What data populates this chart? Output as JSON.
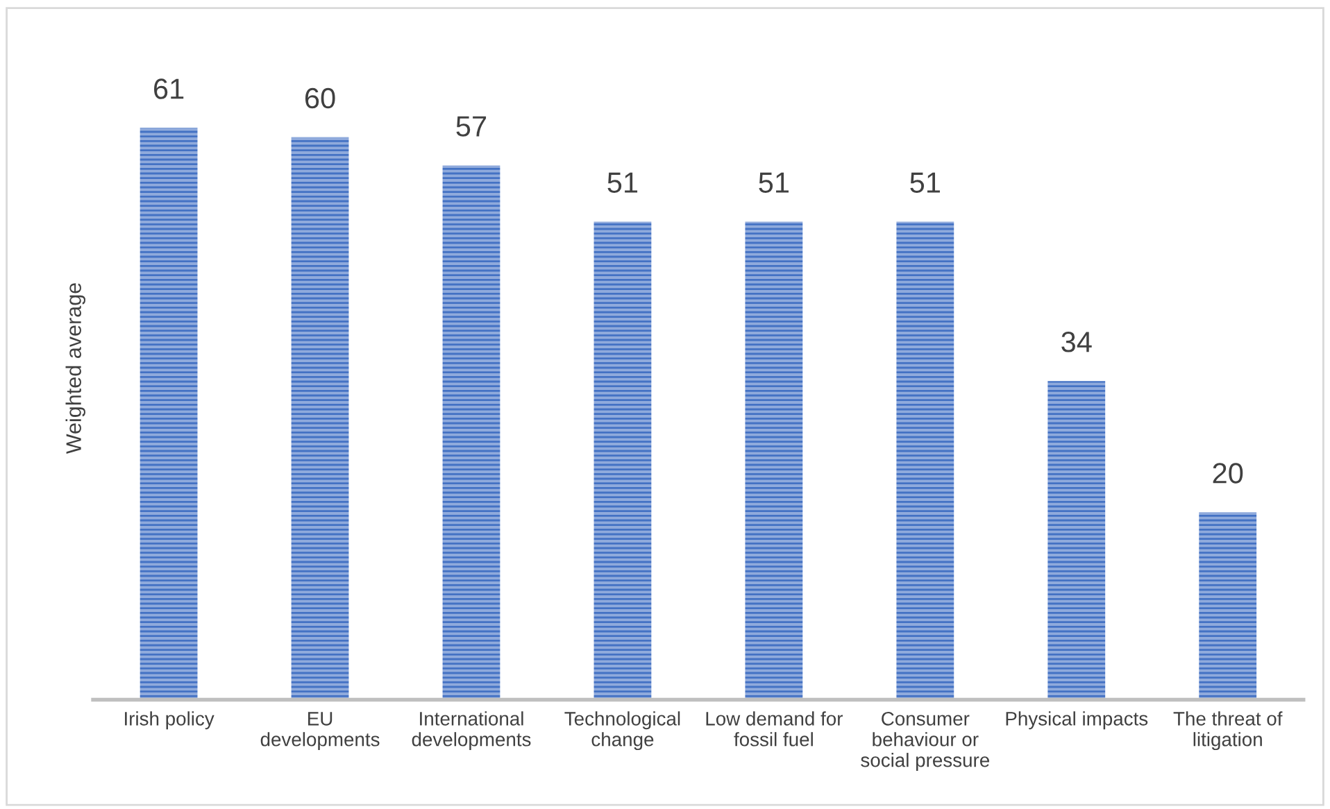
{
  "chart_data": {
    "type": "bar",
    "ylabel": "Weighted average",
    "categories": [
      "Irish policy",
      "EU\ndevelopments",
      "International\ndevelopments",
      "Technological\nchange",
      "Low demand for\nfossil fuel",
      "Consumer\nbehaviour or\nsocial pressure",
      "Physical impacts",
      "The threat of\nlitigation"
    ],
    "values": [
      61,
      60,
      57,
      51,
      51,
      51,
      34,
      20
    ],
    "color": "#4472c4",
    "data_labels": true,
    "grid": false,
    "legend": false
  }
}
